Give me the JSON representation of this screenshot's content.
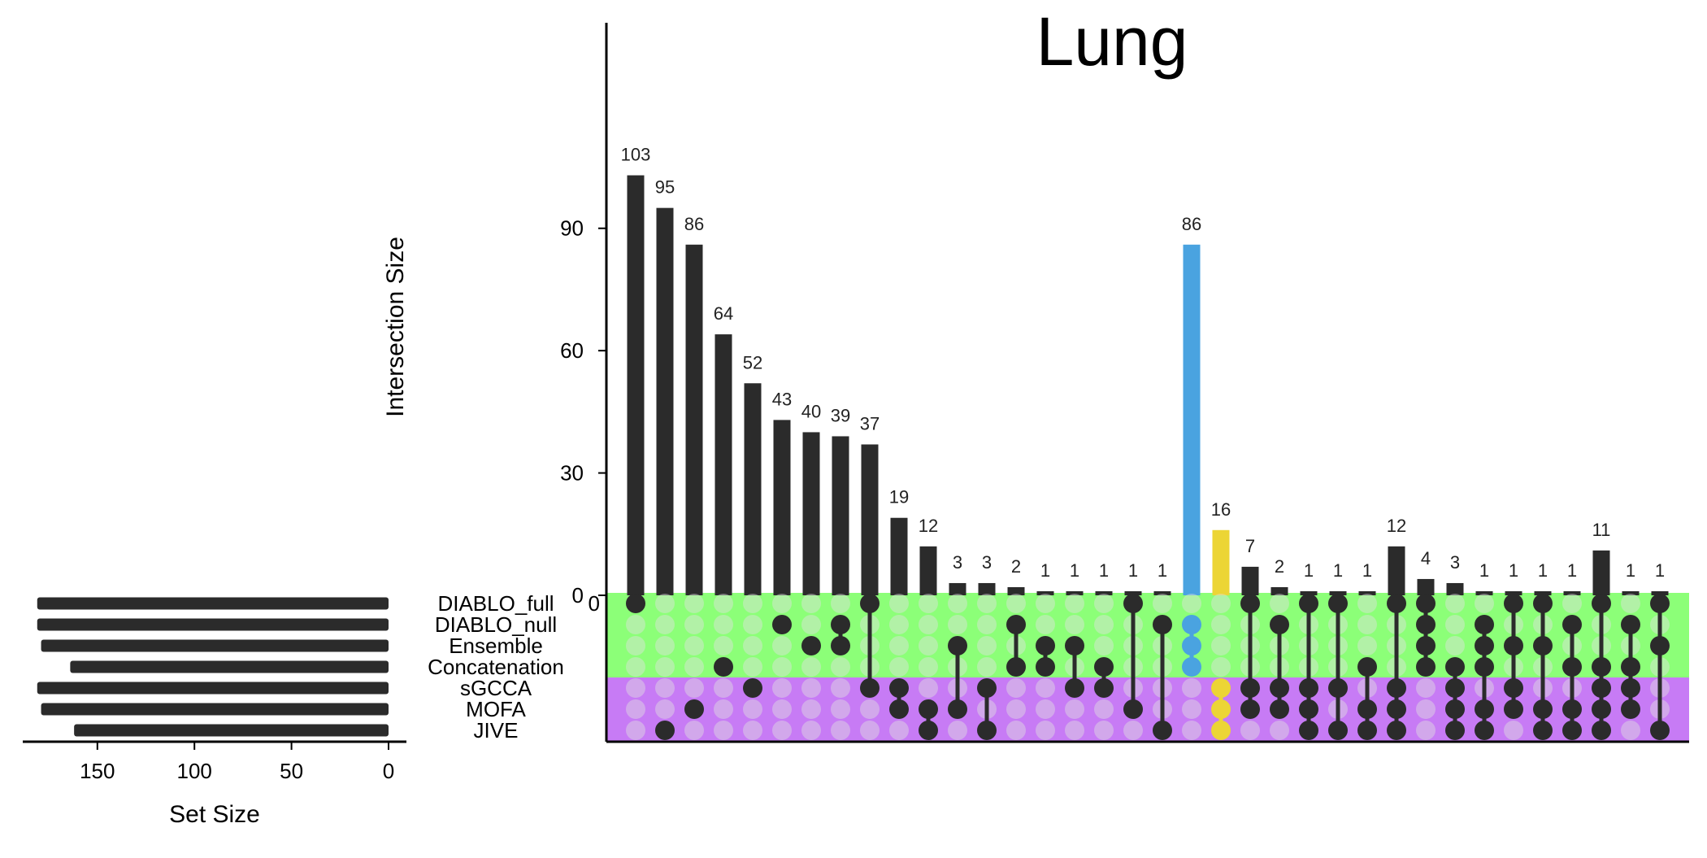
{
  "chart_data": {
    "type": "upset",
    "title": "Lung",
    "intersection_axis": {
      "label": "Intersection Size",
      "ticks": [
        0,
        30,
        60,
        90
      ],
      "ylim": [
        0,
        115
      ]
    },
    "set_size_axis": {
      "label": "Set Size",
      "ticks": [
        150,
        100,
        50,
        0
      ],
      "xlim": [
        0,
        185
      ]
    },
    "sets": [
      "DIABLO_full",
      "DIABLO_null",
      "Ensemble",
      "Concatenation",
      "sGCCA",
      "MOFA",
      "JIVE"
    ],
    "set_sizes": [
      181,
      181,
      179,
      164,
      181,
      179,
      162
    ],
    "set_groups": [
      {
        "sets": [
          "DIABLO_full",
          "DIABLO_null",
          "Ensemble",
          "Concatenation"
        ],
        "color": "#8cff78"
      },
      {
        "sets": [
          "sGCCA",
          "MOFA",
          "JIVE"
        ],
        "color": "#c77bf5"
      }
    ],
    "intersections": [
      {
        "value": 103,
        "sets": [
          "DIABLO_full"
        ]
      },
      {
        "value": 95,
        "sets": [
          "JIVE"
        ]
      },
      {
        "value": 86,
        "sets": [
          "MOFA"
        ]
      },
      {
        "value": 64,
        "sets": [
          "Concatenation"
        ]
      },
      {
        "value": 52,
        "sets": [
          "sGCCA"
        ]
      },
      {
        "value": 43,
        "sets": [
          "DIABLO_null"
        ]
      },
      {
        "value": 40,
        "sets": [
          "Ensemble"
        ]
      },
      {
        "value": 39,
        "sets": [
          "DIABLO_null",
          "Ensemble"
        ]
      },
      {
        "value": 37,
        "sets": [
          "DIABLO_full",
          "sGCCA"
        ]
      },
      {
        "value": 19,
        "sets": [
          "sGCCA",
          "MOFA"
        ]
      },
      {
        "value": 12,
        "sets": [
          "MOFA",
          "JIVE"
        ]
      },
      {
        "value": 3,
        "sets": [
          "Ensemble",
          "MOFA"
        ]
      },
      {
        "value": 3,
        "sets": [
          "sGCCA",
          "JIVE"
        ]
      },
      {
        "value": 2,
        "sets": [
          "DIABLO_null",
          "Concatenation"
        ]
      },
      {
        "value": 1,
        "sets": [
          "Ensemble",
          "Concatenation"
        ]
      },
      {
        "value": 1,
        "sets": [
          "Ensemble",
          "sGCCA"
        ]
      },
      {
        "value": 1,
        "sets": [
          "Concatenation",
          "sGCCA"
        ]
      },
      {
        "value": 1,
        "sets": [
          "DIABLO_full",
          "MOFA"
        ]
      },
      {
        "value": 1,
        "sets": [
          "DIABLO_null",
          "JIVE"
        ]
      },
      {
        "value": 86,
        "sets": [
          "DIABLO_null",
          "Ensemble",
          "Concatenation"
        ],
        "color": "#4aa3e0"
      },
      {
        "value": 16,
        "sets": [
          "sGCCA",
          "MOFA",
          "JIVE"
        ],
        "color": "#ecd535"
      },
      {
        "value": 7,
        "sets": [
          "DIABLO_full",
          "sGCCA",
          "MOFA"
        ]
      },
      {
        "value": 2,
        "sets": [
          "DIABLO_null",
          "sGCCA",
          "MOFA"
        ]
      },
      {
        "value": 1,
        "sets": [
          "DIABLO_full",
          "sGCCA",
          "MOFA",
          "JIVE"
        ]
      },
      {
        "value": 1,
        "sets": [
          "DIABLO_full",
          "sGCCA",
          "JIVE"
        ]
      },
      {
        "value": 1,
        "sets": [
          "Concatenation",
          "MOFA",
          "JIVE"
        ]
      },
      {
        "value": 12,
        "sets": [
          "DIABLO_full",
          "sGCCA",
          "MOFA",
          "JIVE"
        ]
      },
      {
        "value": 4,
        "sets": [
          "DIABLO_full",
          "DIABLO_null",
          "Ensemble",
          "Concatenation"
        ]
      },
      {
        "value": 3,
        "sets": [
          "Concatenation",
          "sGCCA",
          "MOFA",
          "JIVE"
        ]
      },
      {
        "value": 1,
        "sets": [
          "DIABLO_null",
          "Ensemble",
          "Concatenation",
          "MOFA",
          "JIVE"
        ]
      },
      {
        "value": 1,
        "sets": [
          "DIABLO_full",
          "Ensemble",
          "sGCCA",
          "MOFA"
        ]
      },
      {
        "value": 1,
        "sets": [
          "DIABLO_full",
          "Ensemble",
          "MOFA",
          "JIVE"
        ]
      },
      {
        "value": 1,
        "sets": [
          "DIABLO_null",
          "Concatenation",
          "MOFA",
          "JIVE"
        ]
      },
      {
        "value": 11,
        "sets": [
          "DIABLO_full",
          "Concatenation",
          "sGCCA",
          "MOFA",
          "JIVE"
        ]
      },
      {
        "value": 1,
        "sets": [
          "DIABLO_null",
          "Concatenation",
          "sGCCA",
          "MOFA"
        ]
      },
      {
        "value": 1,
        "sets": [
          "DIABLO_full",
          "Ensemble",
          "JIVE"
        ]
      }
    ],
    "colors": {
      "bar": "#2b2b2b",
      "dot_active": "#2b2b2b",
      "dot_inactive": "#e0e0e0"
    }
  }
}
